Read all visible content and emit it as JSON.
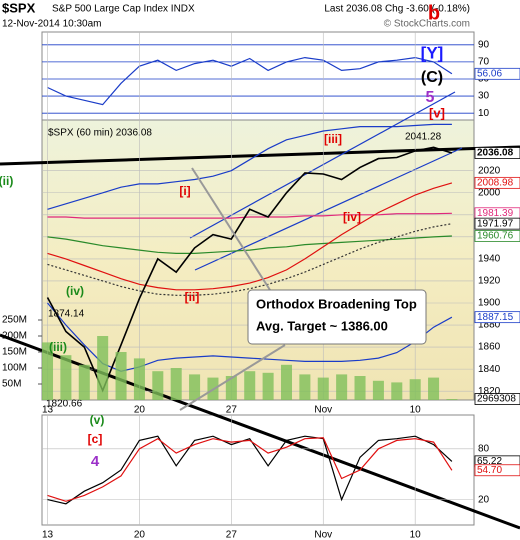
{
  "header": {
    "symbol": "$SPX",
    "name": "S&P 500 Large Cap Index INDX",
    "datetime": "12-Nov-2014 10:30am",
    "quote": "Last 2036.08  Chg -3.60 (-0.18%)",
    "source": "© StockCharts.com"
  },
  "annotations": [
    {
      "text": "b",
      "color": "#e00000"
    },
    {
      "text": "[Y]",
      "color": "#1a1aff"
    },
    {
      "text": "(C)",
      "color": "#000000"
    },
    {
      "text": "5",
      "color": "#9b30c8"
    },
    {
      "text": "[v]",
      "color": "#e00000"
    },
    {
      "text": "[iii]",
      "color": "#e00000"
    },
    {
      "text": "[i]",
      "color": "#e00000"
    },
    {
      "text": "[ii]",
      "color": "#e00000"
    },
    {
      "text": "[iv]",
      "color": "#e00000"
    },
    {
      "text": "(ii)",
      "color": "#1a8a1a"
    },
    {
      "text": "(iv)",
      "color": "#1a8a1a"
    },
    {
      "text": "(iii)",
      "color": "#1a8a1a"
    },
    {
      "text": "(v)",
      "color": "#1a8a1a"
    },
    {
      "text": "[c]",
      "color": "#e00000"
    },
    {
      "text": "4",
      "color": "#9b30c8"
    }
  ],
  "callout": [
    "Orthodox Broadening Top",
    "Avg. Target ~ 1386.00"
  ],
  "chart_data": [
    {
      "type": "line",
      "xlim": [
        -0.3,
        23.2
      ],
      "ylim": [
        2,
        105
      ],
      "yticks": [
        90,
        70,
        50,
        30,
        10
      ],
      "x": [
        0,
        1,
        2,
        3,
        4,
        5,
        6,
        7,
        8,
        9,
        10,
        11,
        12,
        13,
        14,
        15,
        16,
        17,
        18,
        19,
        20,
        21,
        22
      ],
      "series": [
        {
          "color": "#1a3cc8",
          "values": [
            40,
            30,
            25,
            20,
            45,
            65,
            72,
            60,
            68,
            72,
            65,
            74,
            60,
            70,
            75,
            72,
            60,
            62,
            70,
            72,
            75,
            70,
            56.06
          ]
        }
      ],
      "right_labels": [
        {
          "value": 56.06,
          "color": "#1a3cc8"
        }
      ]
    },
    {
      "type": "line",
      "label": "$SPX (60 min) 2036.08",
      "xlim": [
        -0.3,
        23.2
      ],
      "ylim": [
        1812,
        2066
      ],
      "yticks": [
        2020,
        2000,
        1980,
        1960,
        1940,
        1920,
        1900,
        1880,
        1860,
        1840,
        1820
      ],
      "xticks": [
        {
          "value": 0,
          "label": "13"
        },
        {
          "value": 5,
          "label": "20"
        },
        {
          "value": 10,
          "label": "27"
        },
        {
          "value": 15,
          "label": "Nov"
        },
        {
          "value": 20,
          "label": "10"
        }
      ],
      "x": [
        0,
        1,
        2,
        3,
        4,
        5,
        6,
        7,
        8,
        9,
        10,
        11,
        12,
        13,
        14,
        15,
        16,
        17,
        18,
        19,
        20,
        21,
        22
      ],
      "series": [
        {
          "color": "#1a3cc8",
          "values": [
            1985,
            1990,
            1995,
            2000,
            2005,
            2008,
            2008,
            2010,
            2012,
            2015,
            2020,
            2030,
            2040,
            2048,
            2052,
            2056,
            2058,
            2060,
            2060,
            2060,
            2061,
            2062,
            2062
          ]
        },
        {
          "color": "#1a3cc8",
          "values": [
            1900,
            1880,
            1862,
            1845,
            1838,
            1842,
            1848,
            1850,
            1851,
            1852,
            1851,
            1850,
            1849,
            1848,
            1847,
            1847,
            1847,
            1848,
            1850,
            1855,
            1865,
            1878,
            1887.15
          ]
        },
        {
          "color": "#e0287a",
          "values": [
            1978,
            1978,
            1977,
            1977,
            1977,
            1977,
            1977,
            1977,
            1977,
            1977,
            1977,
            1978,
            1978,
            1978,
            1979,
            1979,
            1980,
            1980,
            1980,
            1981,
            1981,
            1981,
            1981.39
          ]
        },
        {
          "color": "#2a8a2a",
          "values": [
            1960,
            1958,
            1955,
            1952,
            1950,
            1948,
            1946,
            1945,
            1945,
            1946,
            1947,
            1948,
            1950,
            1951,
            1953,
            1954,
            1955,
            1956,
            1957,
            1958,
            1959,
            1960,
            1960.76
          ]
        },
        {
          "color": "#333333",
          "dashed": true,
          "values": [
            1935,
            1930,
            1925,
            1920,
            1915,
            1911,
            1908,
            1907,
            1907,
            1908,
            1910,
            1913,
            1917,
            1922,
            1928,
            1935,
            1942,
            1949,
            1955,
            1960,
            1965,
            1969,
            1971.97
          ]
        },
        {
          "color": "#e01010",
          "values": [
            1945,
            1940,
            1934,
            1928,
            1922,
            1917,
            1914,
            1912,
            1912,
            1913,
            1915,
            1918,
            1923,
            1930,
            1940,
            1951,
            1962,
            1972,
            1982,
            1990,
            1998,
            2004,
            2008.98
          ]
        },
        {
          "color": "#000000",
          "values": [
            1905,
            1874.14,
            1860,
            1820.66,
            1862,
            1904,
            1940,
            1928,
            1950,
            1962,
            1958,
            1985,
            1978,
            2000,
            2018,
            2017,
            2012,
            2023,
            2031,
            2032,
            2038,
            2041.28,
            2036.08
          ]
        }
      ],
      "price_labels": [
        {
          "value": 2041.28
        },
        {
          "value": 1874.14
        },
        {
          "value": 1820.66
        }
      ],
      "right_labels": [
        {
          "value": 2036.08,
          "color": "#000000"
        },
        {
          "value": 2008.98,
          "color": "#e01010"
        },
        {
          "value": 1981.39,
          "color": "#e0287a"
        },
        {
          "value": 1971.97,
          "color": "#000000"
        },
        {
          "value": 1960.76,
          "color": "#2a8a2a"
        },
        {
          "value": 1887.15,
          "color": "#1a3cc8"
        }
      ]
    },
    {
      "type": "bar",
      "xlim": [
        -0.3,
        23.2
      ],
      "ylim": [
        0,
        300000000
      ],
      "color": "#7fbf5a",
      "yticks": [
        {
          "value": 250000000,
          "label": "250M"
        },
        {
          "value": 200000000,
          "label": "200M"
        },
        {
          "value": 150000000,
          "label": "150M"
        },
        {
          "value": 100000000,
          "label": "100M"
        },
        {
          "value": 50000000,
          "label": "50M"
        }
      ],
      "x": [
        0,
        1,
        2,
        3,
        4,
        5,
        6,
        7,
        8,
        9,
        10,
        11,
        12,
        13,
        14,
        15,
        16,
        17,
        18,
        19,
        20,
        21,
        22
      ],
      "values": [
        180000000,
        140000000,
        110000000,
        200000000,
        150000000,
        130000000,
        90000000,
        100000000,
        80000000,
        70000000,
        75000000,
        90000000,
        85000000,
        110000000,
        80000000,
        70000000,
        80000000,
        75000000,
        60000000,
        55000000,
        65000000,
        70000000,
        2969308
      ],
      "right_labels": [
        {
          "value": 2969308,
          "color": "#000000"
        }
      ]
    },
    {
      "type": "line",
      "xlim": [
        -0.3,
        23.2
      ],
      "ylim": [
        -10,
        120
      ],
      "yticks": [
        80,
        20
      ],
      "xticks": [
        {
          "value": 0,
          "label": "13"
        },
        {
          "value": 5,
          "label": "20"
        },
        {
          "value": 10,
          "label": "27"
        },
        {
          "value": 15,
          "label": "Nov"
        },
        {
          "value": 20,
          "label": "10"
        }
      ],
      "x": [
        0,
        1,
        2,
        3,
        4,
        5,
        6,
        7,
        8,
        9,
        10,
        11,
        12,
        13,
        14,
        15,
        16,
        17,
        18,
        19,
        20,
        21,
        22
      ],
      "series": [
        {
          "color": "#000000",
          "values": [
            20,
            15,
            30,
            40,
            55,
            90,
            95,
            60,
            90,
            95,
            85,
            92,
            60,
            90,
            95,
            92,
            20,
            70,
            90,
            92,
            95,
            85,
            65.22
          ]
        },
        {
          "color": "#e01010",
          "values": [
            25,
            18,
            25,
            35,
            48,
            80,
            92,
            75,
            85,
            92,
            88,
            90,
            75,
            82,
            92,
            93,
            45,
            55,
            80,
            90,
            92,
            88,
            54.7
          ]
        }
      ],
      "right_labels": [
        {
          "value": 65.22,
          "color": "#000000"
        },
        {
          "value": 54.7,
          "label": "54.70",
          "color": "#e01010"
        }
      ]
    }
  ]
}
